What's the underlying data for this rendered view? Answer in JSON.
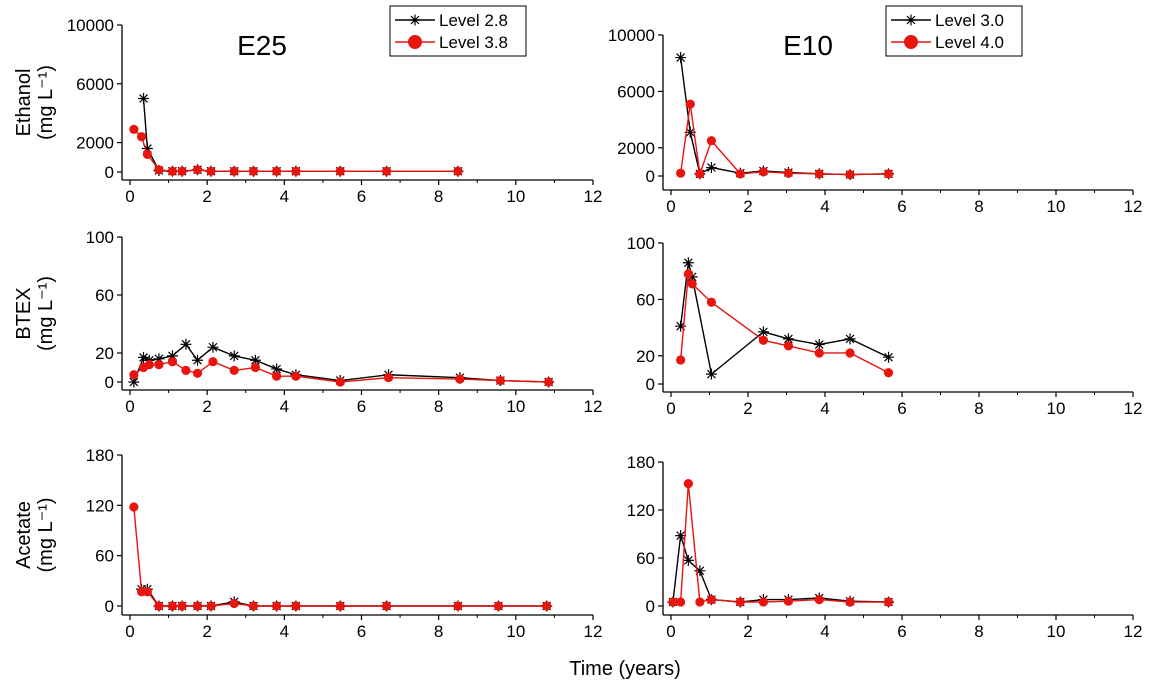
{
  "figure": {
    "xlabel": "Time (years)"
  },
  "colors": {
    "black_series": "#000000",
    "red_series": "#e8140e",
    "axis": "#000000"
  },
  "chart_data": [
    {
      "type": "line",
      "title": "E25",
      "ylabel": "Ethanol",
      "yunit": "(mg L⁻¹)",
      "xlim": [
        0,
        12
      ],
      "ylim": [
        0,
        10000
      ],
      "xticks": [
        0,
        2,
        4,
        6,
        8,
        10,
        12
      ],
      "yticks": [
        0,
        2000,
        6000,
        10000
      ],
      "legend": "top-right",
      "series": [
        {
          "name": "Level 2.8",
          "color": "#000000",
          "marker": "asterisk",
          "x": [
            0.35,
            0.45,
            0.75,
            1.1,
            1.35,
            1.75,
            2.1,
            2.7,
            3.2,
            3.8,
            4.3,
            5.45,
            6.65,
            8.5
          ],
          "y": [
            5000,
            1600,
            100,
            50,
            50,
            150,
            50,
            50,
            50,
            50,
            50,
            50,
            50,
            50
          ]
        },
        {
          "name": "Level 3.8",
          "color": "#e8140e",
          "marker": "circle",
          "x": [
            0.1,
            0.3,
            0.45,
            0.75,
            1.1,
            1.35,
            1.75,
            2.1,
            2.7,
            3.2,
            3.8,
            4.3,
            5.45,
            6.65,
            8.5
          ],
          "y": [
            2900,
            2400,
            1200,
            150,
            50,
            50,
            150,
            50,
            50,
            50,
            50,
            50,
            50,
            50,
            50
          ]
        }
      ]
    },
    {
      "type": "line",
      "title": "E10",
      "ylabel": "",
      "yunit": "",
      "xlim": [
        0,
        12
      ],
      "ylim": [
        0,
        10000
      ],
      "xticks": [
        0,
        2,
        4,
        6,
        8,
        10,
        12
      ],
      "yticks": [
        0,
        2000,
        6000,
        10000
      ],
      "legend": "top-right",
      "series": [
        {
          "name": "Level 3.0",
          "color": "#000000",
          "marker": "asterisk",
          "x": [
            0.25,
            0.5,
            0.75,
            1.05,
            1.8,
            2.4,
            3.05,
            3.85,
            4.65,
            5.65
          ],
          "y": [
            8400,
            3100,
            150,
            600,
            200,
            350,
            250,
            150,
            100,
            150
          ]
        },
        {
          "name": "Level 4.0",
          "color": "#e8140e",
          "marker": "circle",
          "x": [
            0.25,
            0.5,
            0.75,
            1.05,
            1.8,
            2.4,
            3.05,
            3.85,
            4.65,
            5.65
          ],
          "y": [
            200,
            5100,
            150,
            2500,
            150,
            300,
            200,
            150,
            100,
            150
          ]
        }
      ]
    },
    {
      "type": "line",
      "title": "",
      "ylabel": "BTEX",
      "yunit": "(mg L⁻¹)",
      "xlim": [
        0,
        12
      ],
      "ylim": [
        0,
        100
      ],
      "xticks": [
        0,
        2,
        4,
        6,
        8,
        10,
        12
      ],
      "yticks": [
        0,
        20,
        60,
        100
      ],
      "series": [
        {
          "name": "Level 2.8",
          "color": "#000000",
          "marker": "asterisk",
          "x": [
            0.1,
            0.35,
            0.5,
            0.75,
            1.1,
            1.45,
            1.75,
            2.15,
            2.7,
            3.25,
            3.8,
            4.3,
            5.45,
            6.7,
            8.55,
            9.6,
            10.85
          ],
          "y": [
            0,
            17,
            15,
            16,
            18,
            26,
            15,
            24,
            18,
            15,
            9,
            5,
            1,
            5,
            3,
            1,
            0
          ]
        },
        {
          "name": "Level 3.8",
          "color": "#e8140e",
          "marker": "circle",
          "x": [
            0.1,
            0.35,
            0.5,
            0.75,
            1.1,
            1.45,
            1.75,
            2.15,
            2.7,
            3.25,
            3.8,
            4.3,
            5.45,
            6.7,
            8.55,
            9.6,
            10.85
          ],
          "y": [
            5,
            10,
            12,
            12,
            14,
            8,
            6,
            14,
            8,
            10,
            4,
            4,
            0,
            3,
            2,
            1,
            0
          ]
        }
      ]
    },
    {
      "type": "line",
      "title": "",
      "ylabel": "",
      "yunit": "",
      "xlim": [
        0,
        12
      ],
      "ylim": [
        0,
        100
      ],
      "xticks": [
        0,
        2,
        4,
        6,
        8,
        10,
        12
      ],
      "yticks": [
        0,
        20,
        60,
        100
      ],
      "series": [
        {
          "name": "Level 3.0",
          "color": "#000000",
          "marker": "asterisk",
          "x": [
            0.25,
            0.45,
            0.55,
            1.05,
            2.4,
            3.05,
            3.85,
            4.65,
            5.65
          ],
          "y": [
            41,
            86,
            76,
            7,
            37,
            32,
            28,
            32,
            19
          ]
        },
        {
          "name": "Level 4.0",
          "color": "#e8140e",
          "marker": "circle",
          "x": [
            0.25,
            0.45,
            0.55,
            1.05,
            2.4,
            3.05,
            3.85,
            4.65,
            5.65
          ],
          "y": [
            17,
            78,
            71,
            58,
            31,
            27,
            22,
            22,
            8
          ]
        }
      ]
    },
    {
      "type": "line",
      "title": "",
      "ylabel": "Acetate",
      "yunit": "(mg L⁻¹)",
      "xlim": [
        0,
        12
      ],
      "ylim": [
        0,
        180
      ],
      "xticks": [
        0,
        2,
        4,
        6,
        8,
        10,
        12
      ],
      "yticks": [
        0,
        60,
        120,
        180
      ],
      "series": [
        {
          "name": "Level 2.8",
          "color": "#000000",
          "marker": "asterisk",
          "x": [
            0.3,
            0.45,
            0.75,
            1.1,
            1.35,
            1.75,
            2.1,
            2.7,
            3.2,
            3.8,
            4.3,
            5.45,
            6.65,
            8.5,
            9.55,
            10.8
          ],
          "y": [
            20,
            20,
            0,
            0,
            0,
            0,
            0,
            5,
            0,
            0,
            0,
            0,
            0,
            0,
            0,
            0
          ]
        },
        {
          "name": "Level 3.8",
          "color": "#e8140e",
          "marker": "circle",
          "x": [
            0.1,
            0.3,
            0.45,
            0.75,
            1.1,
            1.35,
            1.75,
            2.1,
            2.7,
            3.2,
            3.8,
            4.3,
            5.45,
            6.65,
            8.5,
            9.55,
            10.8
          ],
          "y": [
            118,
            17,
            17,
            0,
            0,
            0,
            0,
            0,
            3,
            0,
            0,
            0,
            0,
            0,
            0,
            0,
            0
          ]
        }
      ]
    },
    {
      "type": "line",
      "title": "",
      "ylabel": "",
      "yunit": "",
      "xlim": [
        0,
        12
      ],
      "ylim": [
        0,
        180
      ],
      "xticks": [
        0,
        2,
        4,
        6,
        8,
        10,
        12
      ],
      "yticks": [
        0,
        60,
        120,
        180
      ],
      "series": [
        {
          "name": "Level 3.0",
          "color": "#000000",
          "marker": "asterisk",
          "x": [
            0.05,
            0.25,
            0.45,
            0.75,
            1.05,
            1.8,
            2.4,
            3.05,
            3.85,
            4.65,
            5.65
          ],
          "y": [
            5,
            88,
            57,
            44,
            8,
            5,
            8,
            8,
            10,
            6,
            5
          ]
        },
        {
          "name": "Level 4.0",
          "color": "#e8140e",
          "marker": "circle",
          "x": [
            0.05,
            0.25,
            0.45,
            0.75,
            1.05,
            1.8,
            2.4,
            3.05,
            3.85,
            4.65,
            5.65
          ],
          "y": [
            5,
            5,
            153,
            5,
            8,
            5,
            5,
            6,
            8,
            5,
            5
          ]
        }
      ]
    }
  ]
}
